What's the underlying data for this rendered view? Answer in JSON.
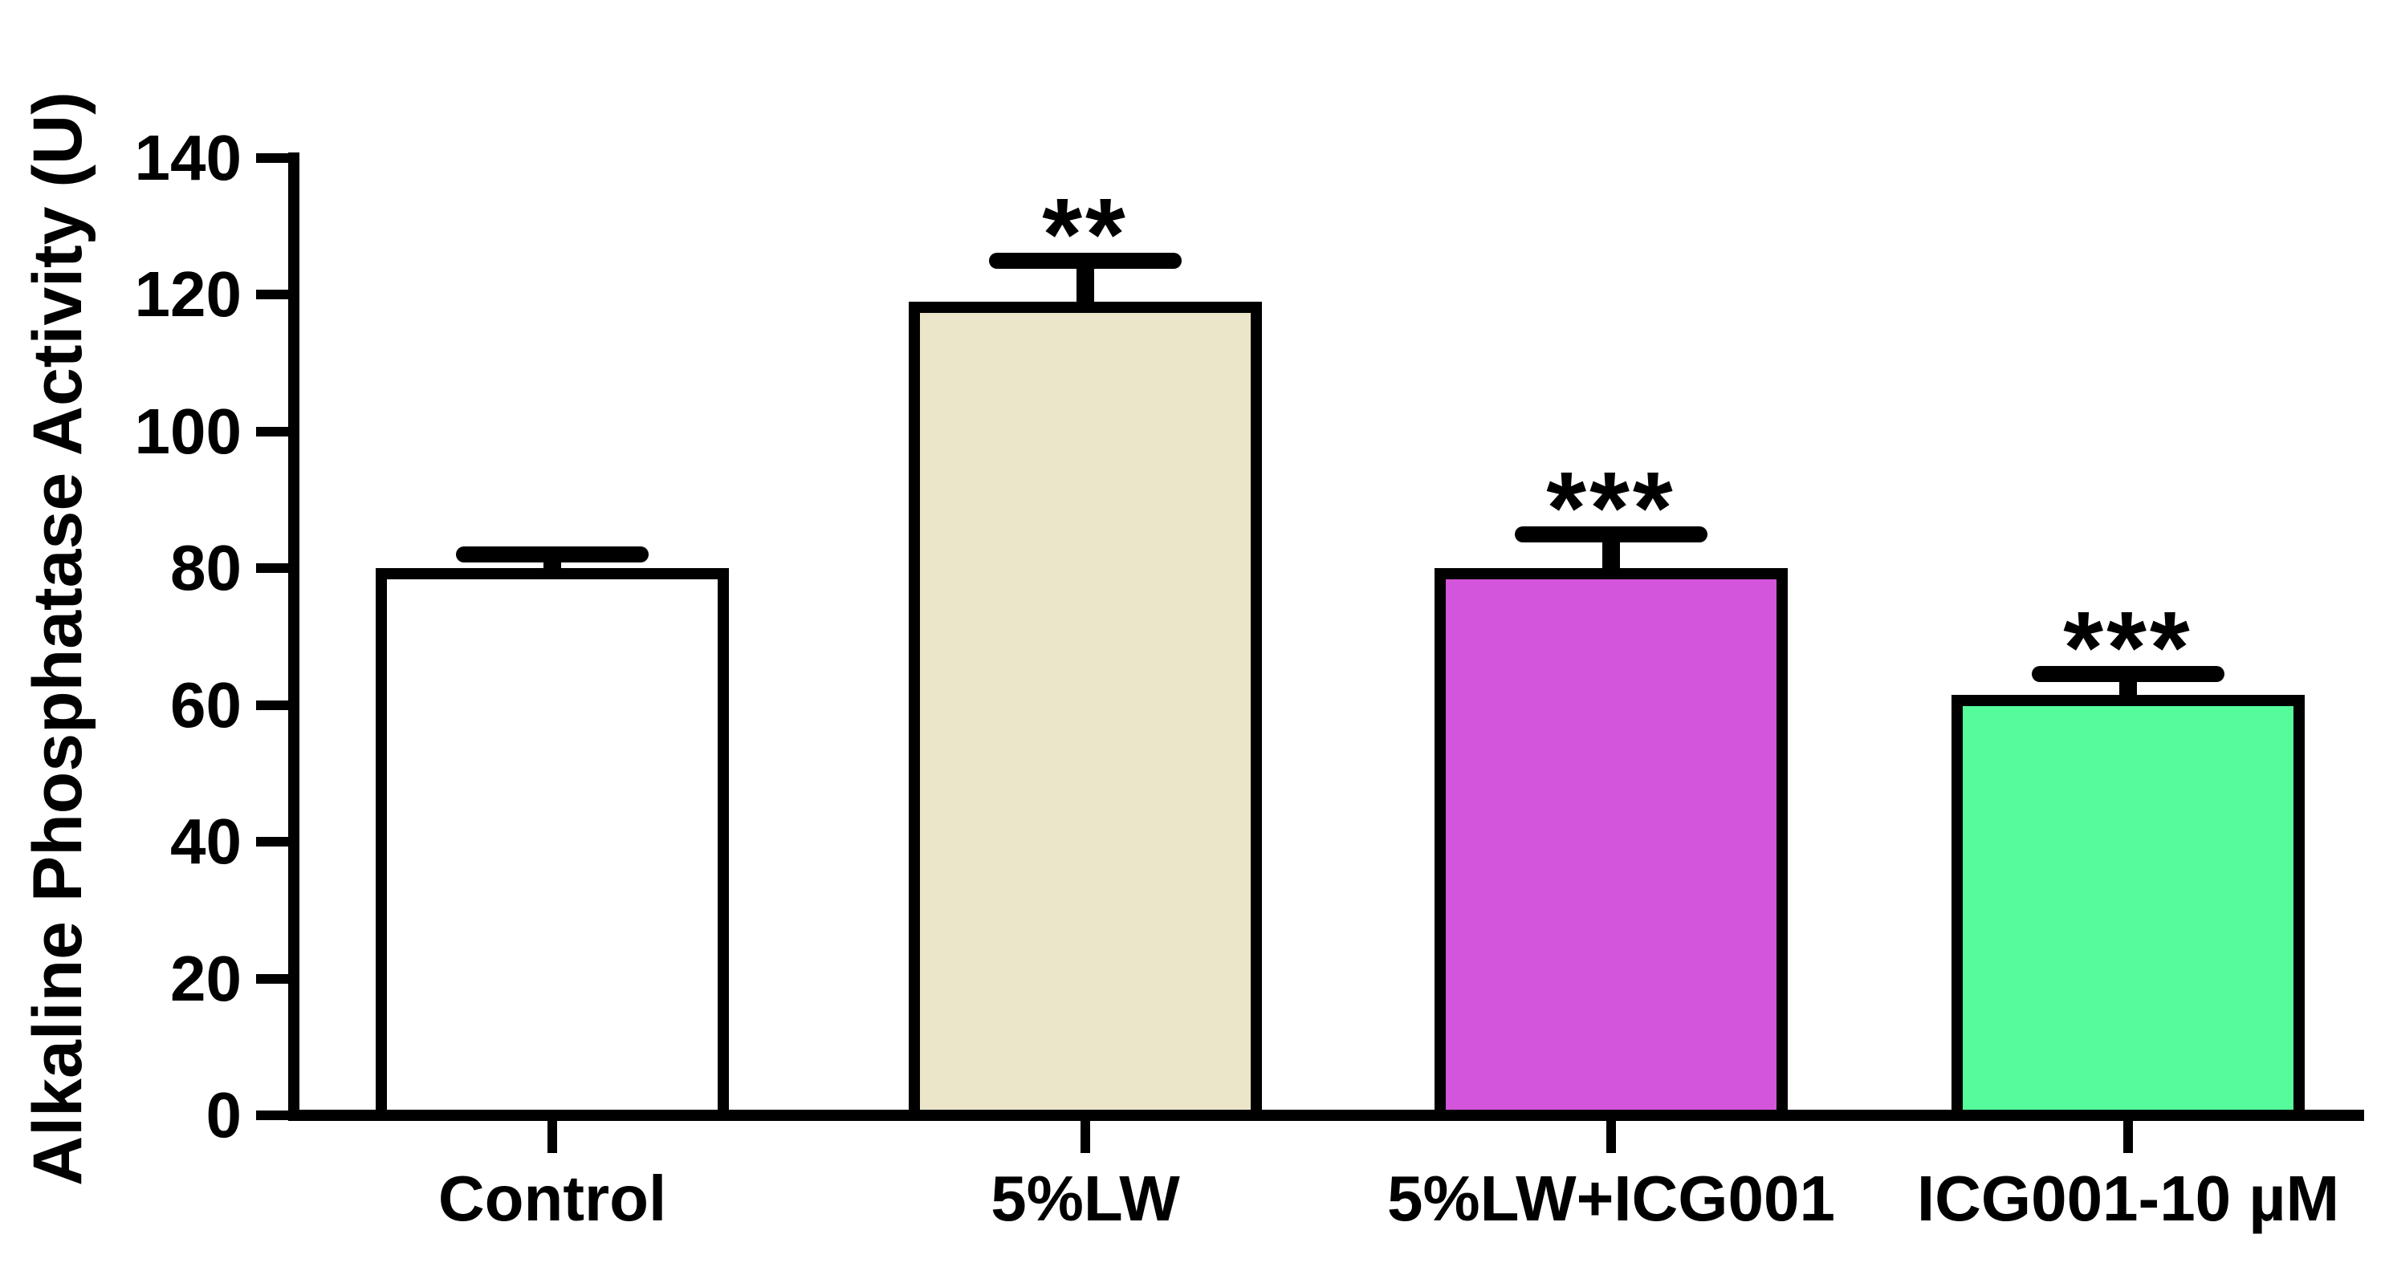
{
  "chart_data": {
    "type": "bar",
    "title": "",
    "ylabel": "Alkaline Phosphatase Activity (U)",
    "xlabel": "",
    "ylim": [
      0,
      140
    ],
    "yticks": [
      0,
      20,
      40,
      60,
      80,
      100,
      120,
      140
    ],
    "categories": [
      "Control",
      "5%LW",
      "5%LW+ICG001",
      "ICG001-10 µM"
    ],
    "values": [
      80,
      119,
      80,
      61.5
    ],
    "errors_upper": [
      2,
      6,
      5,
      3
    ],
    "significance": [
      "",
      "**",
      "***",
      "***"
    ],
    "bar_fill_colors": [
      "#ffffff",
      "#ebe5c9",
      "#d355db",
      "#56fc9c"
    ],
    "bar_border_color": "#000000",
    "axis_color": "#000000",
    "text_color": "#000000",
    "background": "#ffffff",
    "grid": false,
    "legend": null
  }
}
